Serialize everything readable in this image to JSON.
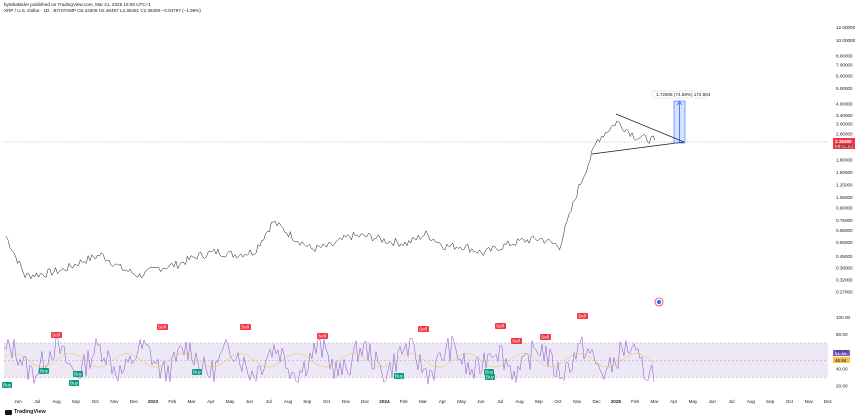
{
  "header": {
    "publisher": "bytebaktider published on TradingView.com, Mar 21, 2025 16:08 UTC+1",
    "symbol": "XRP / U.S. Dollar · 1D · BITSTAMP",
    "ohlc": "O2.43306  H2.46497  L2.35481  C2.38490  −0.04797 (−1.96%)"
  },
  "price_axis": {
    "labels": [
      "12.00000",
      "10.00000",
      "8.00000",
      "7.00000",
      "6.00000",
      "5.00000",
      "4.00000",
      "3.40000",
      "3.00000",
      "2.60000",
      "2.20000",
      "1.80000",
      "1.50000",
      "1.25000",
      "1.05000",
      "0.90000",
      "0.75000",
      "0.65000",
      "0.55000",
      "0.45000",
      "0.38000",
      "0.32000",
      "0.27000"
    ],
    "values": [
      12,
      10,
      8,
      7,
      6,
      5,
      4,
      3.4,
      3,
      2.6,
      2.2,
      1.8,
      1.5,
      1.25,
      1.05,
      0.9,
      0.75,
      0.65,
      0.55,
      0.45,
      0.38,
      0.32,
      0.27
    ],
    "scale": "log",
    "range": [
      0.24,
      15
    ]
  },
  "price_badge": {
    "value": "2.38490",
    "countdown": "08:51:50",
    "color": "#f23645"
  },
  "measure_label": "1.72506 (74.69%) 172,504",
  "rsi_axis": {
    "labels": [
      "100.00",
      "80.00",
      "60.00",
      "40.00",
      "20.00"
    ],
    "values": [
      100,
      80,
      60,
      40,
      20
    ]
  },
  "rsi_badges": {
    "rsi": "51.56",
    "ma": "46.84"
  },
  "time_axis": [
    "Jun",
    "Jul",
    "Aug",
    "Sep",
    "Oct",
    "Nov",
    "Dec",
    "2023",
    "Feb",
    "Mar",
    "Apr",
    "May",
    "Jun",
    "Jul",
    "Aug",
    "Sep",
    "Oct",
    "Nov",
    "Dec",
    "2024",
    "Feb",
    "Mar",
    "Apr",
    "May",
    "Jun",
    "Jul",
    "Aug",
    "Sep",
    "Oct",
    "Nov",
    "Dec",
    "2025",
    "Feb",
    "Mar",
    "Apr",
    "May",
    "Jun",
    "Jul",
    "Aug",
    "Sep",
    "Oct",
    "Nov",
    "Dec"
  ],
  "signals": {
    "buy_label": "Buy",
    "sell_label": "Sell"
  },
  "logo": "TradingView",
  "colors": {
    "price_line": "#131722",
    "rsi_line": "#7e57c2",
    "rsi_ma": "#f6c343",
    "rsi_band": "#ede7f6",
    "measure": "#2962ff",
    "buy": "#089981",
    "sell": "#f23645"
  },
  "chart_data": {
    "type": "line",
    "series": [
      {
        "x": [
          "2022-05",
          "2022-06",
          "2022-07",
          "2022-08",
          "2022-09",
          "2022-10",
          "2022-11",
          "2022-12",
          "2023-01",
          "2023-02",
          "2023-03",
          "2023-04",
          "2023-05",
          "2023-06",
          "2023-07",
          "2023-08",
          "2023-09",
          "2023-10",
          "2023-11",
          "2023-12",
          "2024-01",
          "2024-02",
          "2024-03",
          "2024-04",
          "2024-05",
          "2024-06",
          "2024-07",
          "2024-08",
          "2024-09",
          "2024-10",
          "2024-11",
          "2024-12",
          "2025-01",
          "2025-02",
          "2025-03"
        ],
        "values": [
          0.6,
          0.34,
          0.35,
          0.37,
          0.42,
          0.46,
          0.38,
          0.34,
          0.38,
          0.4,
          0.45,
          0.48,
          0.46,
          0.48,
          0.74,
          0.6,
          0.5,
          0.52,
          0.6,
          0.6,
          0.56,
          0.54,
          0.62,
          0.52,
          0.52,
          0.47,
          0.52,
          0.56,
          0.58,
          0.52,
          1.2,
          2.4,
          3.1,
          2.5,
          2.38
        ]
      }
    ],
    "y_scale": "log"
  }
}
